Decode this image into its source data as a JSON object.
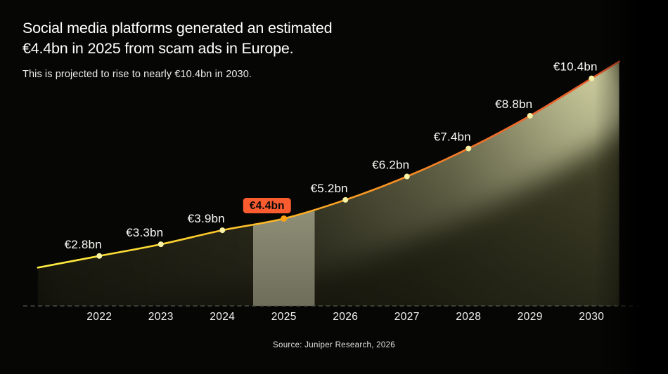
{
  "page": {
    "background": "#060605",
    "title_line1": "Social media platforms generated an estimated",
    "title_line2": "€4.4bn in 2025 from scam ads in Europe.",
    "subtitle": "This is projected to rise to nearly €10.4bn in 2030.",
    "source": "Source: Juniper Research, 2026"
  },
  "chart_data": {
    "type": "area",
    "title": "Social media platforms generated an estimated €4.4bn in 2025 from scam ads in Europe.",
    "subtitle": "This is projected to rise to nearly €10.4bn in 2030.",
    "categories": [
      "2022",
      "2023",
      "2024",
      "2025",
      "2026",
      "2027",
      "2028",
      "2029",
      "2030"
    ],
    "values": [
      2.8,
      3.3,
      3.9,
      4.4,
      5.2,
      6.2,
      7.4,
      8.8,
      10.4
    ],
    "point_labels": [
      "€2.8bn",
      "€3.3bn",
      "€3.9bn",
      "€4.4bn",
      "€5.2bn",
      "€6.2bn",
      "€7.4bn",
      "€8.8bn",
      "€10.4bn"
    ],
    "unit": "€bn",
    "highlight": {
      "index": 3,
      "label": "€4.4bn",
      "year": "2025"
    },
    "ylim": [
      0,
      12
    ],
    "grid": false,
    "legend": "none",
    "xlabel": "",
    "ylabel": "",
    "colors": {
      "line_gradient": [
        "#ffef45",
        "#ffd930",
        "#fdb826",
        "#f79222",
        "#ee6b2a",
        "#e7592c"
      ],
      "dot": "#f8f2a4",
      "dot_highlight": "#ffa114",
      "badge_gradient": [
        "#ffd633",
        "#fc9929",
        "#fa5c30"
      ],
      "badge_text": "#0b0b0b",
      "area_dark": "#1f1f11",
      "area_mid": "#35351f",
      "area_light": "#515132",
      "glow": "#d4d4a4",
      "band_top": "#94947c",
      "band_bottom": "#6d6d5a",
      "axis_dash": "#57574f",
      "label_text": "#fbfbf4",
      "tick_text": "#f4f4f0"
    }
  }
}
